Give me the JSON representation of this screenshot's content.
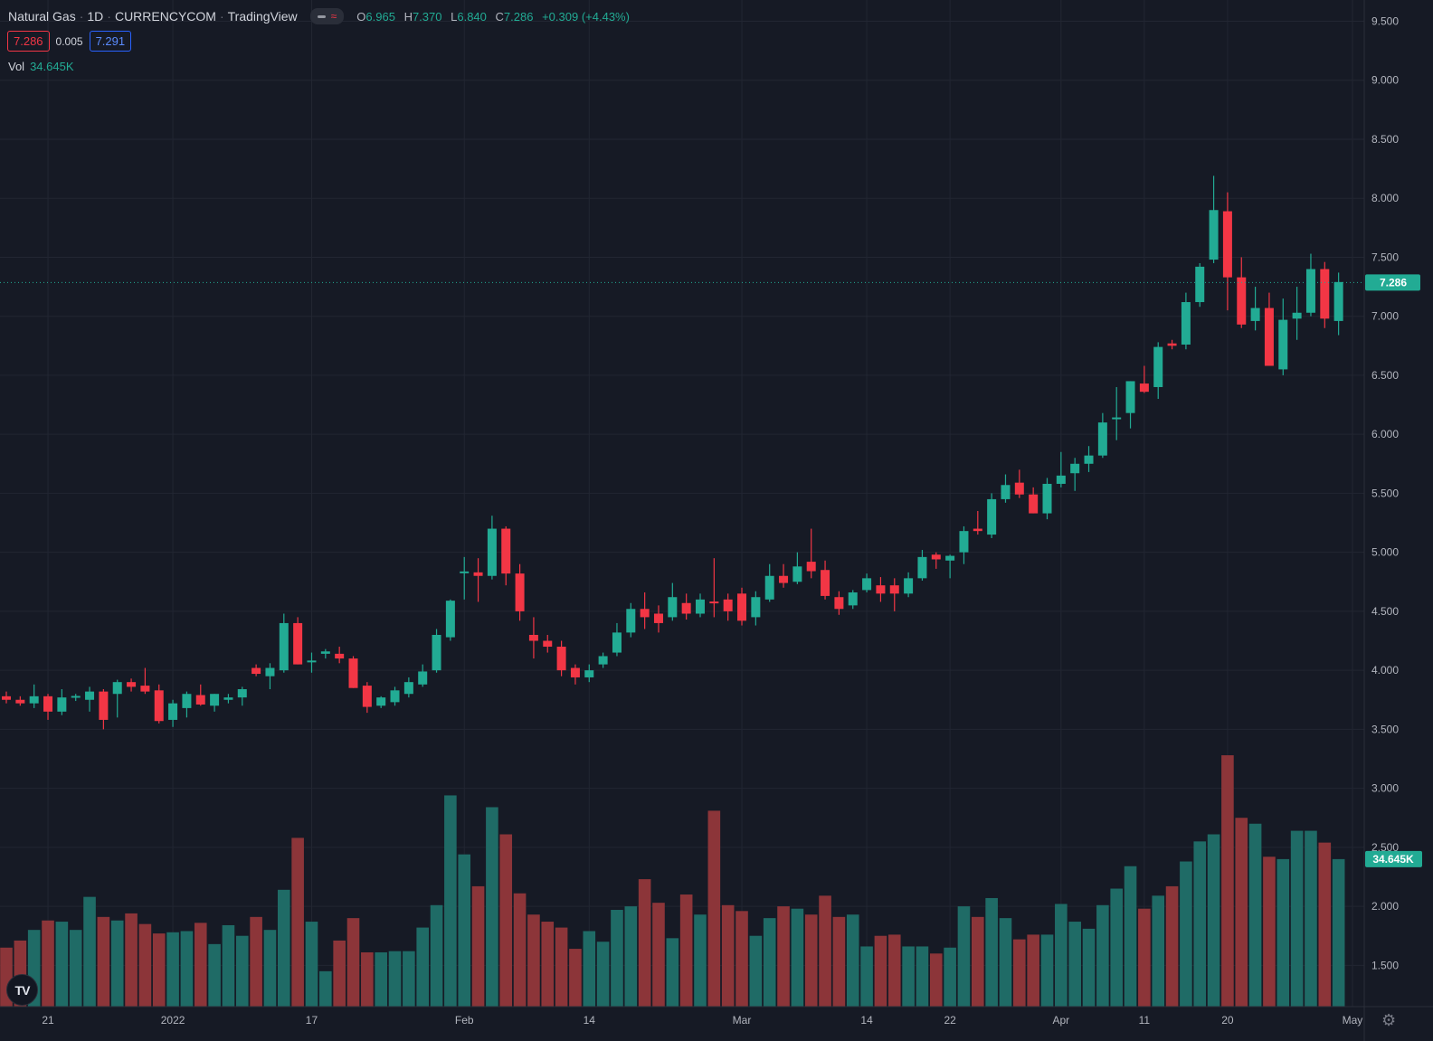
{
  "legend": {
    "symbol": "Natural Gas",
    "interval": "1D",
    "exchange": "CURRENCYCOM",
    "source": "TradingView",
    "o_label": "O",
    "o": "6.965",
    "h_label": "H",
    "h": "7.370",
    "l_label": "L",
    "l": "6.840",
    "c_label": "C",
    "c": "7.286",
    "change": "+0.309 (+4.43%)"
  },
  "quote": {
    "bid": "7.286",
    "spread": "0.005",
    "ask": "7.291"
  },
  "volume": {
    "label": "Vol",
    "value": "34.645K"
  },
  "logo": {
    "text": "TV"
  },
  "colors": {
    "background": "#161a25",
    "up": "#22ab94",
    "down": "#f23645",
    "up_volume": "#1f6b66",
    "down_volume": "#8c3539",
    "grid": "#222632"
  },
  "chart_data": {
    "type": "candlestick",
    "title": "Natural Gas · 1D · CURRENCYCOM",
    "x_tick_labels": [
      "21",
      "2022",
      "17",
      "Feb",
      "14",
      "Mar",
      "14",
      "22",
      "Apr",
      "11",
      "20",
      "May"
    ],
    "y_tick_labels": [
      "9.500",
      "9.000",
      "8.500",
      "8.000",
      "7.500",
      "7.000",
      "6.500",
      "6.000",
      "5.500",
      "5.000",
      "4.500",
      "4.000",
      "3.500",
      "3.000",
      "2.500",
      "2.000",
      "1.500"
    ],
    "ylim": [
      1.15,
      9.68
    ],
    "last_price_label": "7.286",
    "last_volume_label": "34.645K",
    "candles": [
      [
        3.78,
        3.82,
        3.72,
        3.75
      ],
      [
        3.75,
        3.78,
        3.7,
        3.72
      ],
      [
        3.72,
        3.88,
        3.68,
        3.78
      ],
      [
        3.78,
        3.8,
        3.58,
        3.65
      ],
      [
        3.65,
        3.84,
        3.62,
        3.77
      ],
      [
        3.77,
        3.8,
        3.74,
        3.78
      ],
      [
        3.75,
        3.86,
        3.65,
        3.82
      ],
      [
        3.82,
        3.84,
        3.5,
        3.58
      ],
      [
        3.8,
        3.92,
        3.6,
        3.9
      ],
      [
        3.9,
        3.93,
        3.82,
        3.86
      ],
      [
        3.87,
        4.02,
        3.8,
        3.82
      ],
      [
        3.83,
        3.88,
        3.55,
        3.57
      ],
      [
        3.58,
        3.75,
        3.52,
        3.72
      ],
      [
        3.68,
        3.82,
        3.6,
        3.8
      ],
      [
        3.79,
        3.88,
        3.7,
        3.71
      ],
      [
        3.7,
        3.8,
        3.65,
        3.8
      ],
      [
        3.75,
        3.8,
        3.72,
        3.77
      ],
      [
        3.77,
        3.86,
        3.7,
        3.84
      ],
      [
        4.02,
        4.05,
        3.95,
        3.97
      ],
      [
        3.95,
        4.06,
        3.84,
        4.02
      ],
      [
        4.0,
        4.48,
        3.98,
        4.4
      ],
      [
        4.4,
        4.45,
        4.05,
        4.05
      ],
      [
        4.07,
        4.15,
        3.98,
        4.08
      ],
      [
        4.14,
        4.18,
        4.1,
        4.16
      ],
      [
        4.14,
        4.2,
        4.06,
        4.1
      ],
      [
        4.1,
        4.12,
        3.85,
        3.85
      ],
      [
        3.87,
        3.9,
        3.64,
        3.69
      ],
      [
        3.7,
        3.78,
        3.68,
        3.77
      ],
      [
        3.73,
        3.86,
        3.7,
        3.83
      ],
      [
        3.8,
        3.94,
        3.77,
        3.9
      ],
      [
        3.88,
        4.05,
        3.86,
        3.99
      ],
      [
        4.0,
        4.35,
        3.98,
        4.3
      ],
      [
        4.28,
        4.6,
        4.25,
        4.59
      ],
      [
        4.83,
        4.96,
        4.6,
        4.83
      ],
      [
        4.83,
        4.95,
        4.58,
        4.8
      ],
      [
        4.8,
        5.31,
        4.77,
        5.2
      ],
      [
        5.2,
        5.22,
        4.72,
        4.82
      ],
      [
        4.82,
        4.9,
        4.42,
        4.5
      ],
      [
        4.3,
        4.45,
        4.1,
        4.25
      ],
      [
        4.25,
        4.3,
        4.15,
        4.2
      ],
      [
        4.2,
        4.25,
        3.95,
        4.0
      ],
      [
        4.02,
        4.05,
        3.88,
        3.94
      ],
      [
        3.94,
        4.05,
        3.9,
        4.0
      ],
      [
        4.05,
        4.15,
        4.02,
        4.12
      ],
      [
        4.15,
        4.4,
        4.12,
        4.32
      ],
      [
        4.32,
        4.57,
        4.28,
        4.52
      ],
      [
        4.52,
        4.66,
        4.35,
        4.45
      ],
      [
        4.48,
        4.55,
        4.32,
        4.4
      ],
      [
        4.45,
        4.74,
        4.42,
        4.62
      ],
      [
        4.57,
        4.65,
        4.43,
        4.48
      ],
      [
        4.48,
        4.65,
        4.45,
        4.6
      ],
      [
        4.58,
        4.95,
        4.45,
        4.57
      ],
      [
        4.6,
        4.65,
        4.42,
        4.5
      ],
      [
        4.65,
        4.7,
        4.38,
        4.42
      ],
      [
        4.45,
        4.67,
        4.38,
        4.62
      ],
      [
        4.6,
        4.9,
        4.58,
        4.8
      ],
      [
        4.8,
        4.9,
        4.7,
        4.74
      ],
      [
        4.75,
        5.0,
        4.73,
        4.88
      ],
      [
        4.92,
        5.2,
        4.78,
        4.84
      ],
      [
        4.85,
        4.93,
        4.6,
        4.63
      ],
      [
        4.62,
        4.67,
        4.47,
        4.52
      ],
      [
        4.55,
        4.68,
        4.52,
        4.66
      ],
      [
        4.68,
        4.82,
        4.66,
        4.78
      ],
      [
        4.72,
        4.79,
        4.58,
        4.65
      ],
      [
        4.72,
        4.78,
        4.5,
        4.65
      ],
      [
        4.65,
        4.83,
        4.62,
        4.78
      ],
      [
        4.78,
        5.02,
        4.76,
        4.96
      ],
      [
        4.98,
        5.0,
        4.86,
        4.94
      ],
      [
        4.93,
        4.98,
        4.78,
        4.97
      ],
      [
        5.0,
        5.22,
        4.9,
        5.18
      ],
      [
        5.2,
        5.35,
        5.15,
        5.18
      ],
      [
        5.15,
        5.5,
        5.12,
        5.45
      ],
      [
        5.45,
        5.66,
        5.42,
        5.57
      ],
      [
        5.59,
        5.7,
        5.46,
        5.49
      ],
      [
        5.49,
        5.55,
        5.33,
        5.33
      ],
      [
        5.33,
        5.63,
        5.28,
        5.58
      ],
      [
        5.58,
        5.85,
        5.55,
        5.65
      ],
      [
        5.67,
        5.8,
        5.52,
        5.75
      ],
      [
        5.75,
        5.9,
        5.68,
        5.82
      ],
      [
        5.82,
        6.18,
        5.8,
        6.1
      ],
      [
        6.13,
        6.4,
        5.95,
        6.14
      ],
      [
        6.18,
        6.45,
        6.05,
        6.45
      ],
      [
        6.43,
        6.58,
        6.35,
        6.36
      ],
      [
        6.4,
        6.78,
        6.3,
        6.74
      ],
      [
        6.77,
        6.8,
        6.72,
        6.75
      ],
      [
        6.76,
        7.2,
        6.72,
        7.12
      ],
      [
        7.12,
        7.45,
        7.08,
        7.42
      ],
      [
        7.48,
        8.19,
        7.45,
        7.9
      ],
      [
        7.89,
        8.05,
        7.05,
        7.33
      ],
      [
        7.33,
        7.5,
        6.9,
        6.93
      ],
      [
        6.96,
        7.25,
        6.88,
        7.07
      ],
      [
        7.07,
        7.2,
        6.58,
        6.58
      ],
      [
        6.55,
        7.15,
        6.5,
        6.97
      ],
      [
        6.98,
        7.25,
        6.8,
        7.03
      ],
      [
        7.03,
        7.53,
        7.0,
        7.4
      ],
      [
        7.4,
        7.46,
        6.9,
        6.98
      ],
      [
        6.96,
        7.37,
        6.84,
        7.29
      ]
    ],
    "volumes": [
      1.65,
      1.71,
      1.8,
      1.88,
      1.87,
      1.8,
      2.08,
      1.91,
      1.88,
      1.94,
      1.85,
      1.77,
      1.78,
      1.79,
      1.86,
      1.68,
      1.84,
      1.75,
      1.91,
      1.8,
      2.14,
      2.58,
      1.87,
      1.45,
      1.71,
      1.9,
      1.61,
      1.61,
      1.62,
      1.62,
      1.82,
      2.01,
      2.94,
      2.44,
      2.17,
      2.84,
      2.61,
      2.11,
      1.93,
      1.87,
      1.82,
      1.64,
      1.79,
      1.7,
      1.97,
      2.0,
      2.23,
      2.03,
      1.73,
      2.1,
      1.93,
      2.81,
      2.01,
      1.96,
      1.75,
      1.9,
      2.0,
      1.98,
      1.93,
      2.09,
      1.91,
      1.93,
      1.66,
      1.75,
      1.76,
      1.66,
      1.66,
      1.6,
      1.65,
      2.0,
      1.91,
      2.07,
      1.9,
      1.72,
      1.76,
      1.76,
      2.02,
      1.87,
      1.81,
      2.01,
      2.15,
      2.34,
      1.98,
      2.09,
      2.17,
      2.38,
      2.55,
      2.61,
      3.28,
      2.75,
      2.7,
      2.42,
      2.4,
      2.64,
      2.64,
      2.54,
      2.4
    ]
  }
}
